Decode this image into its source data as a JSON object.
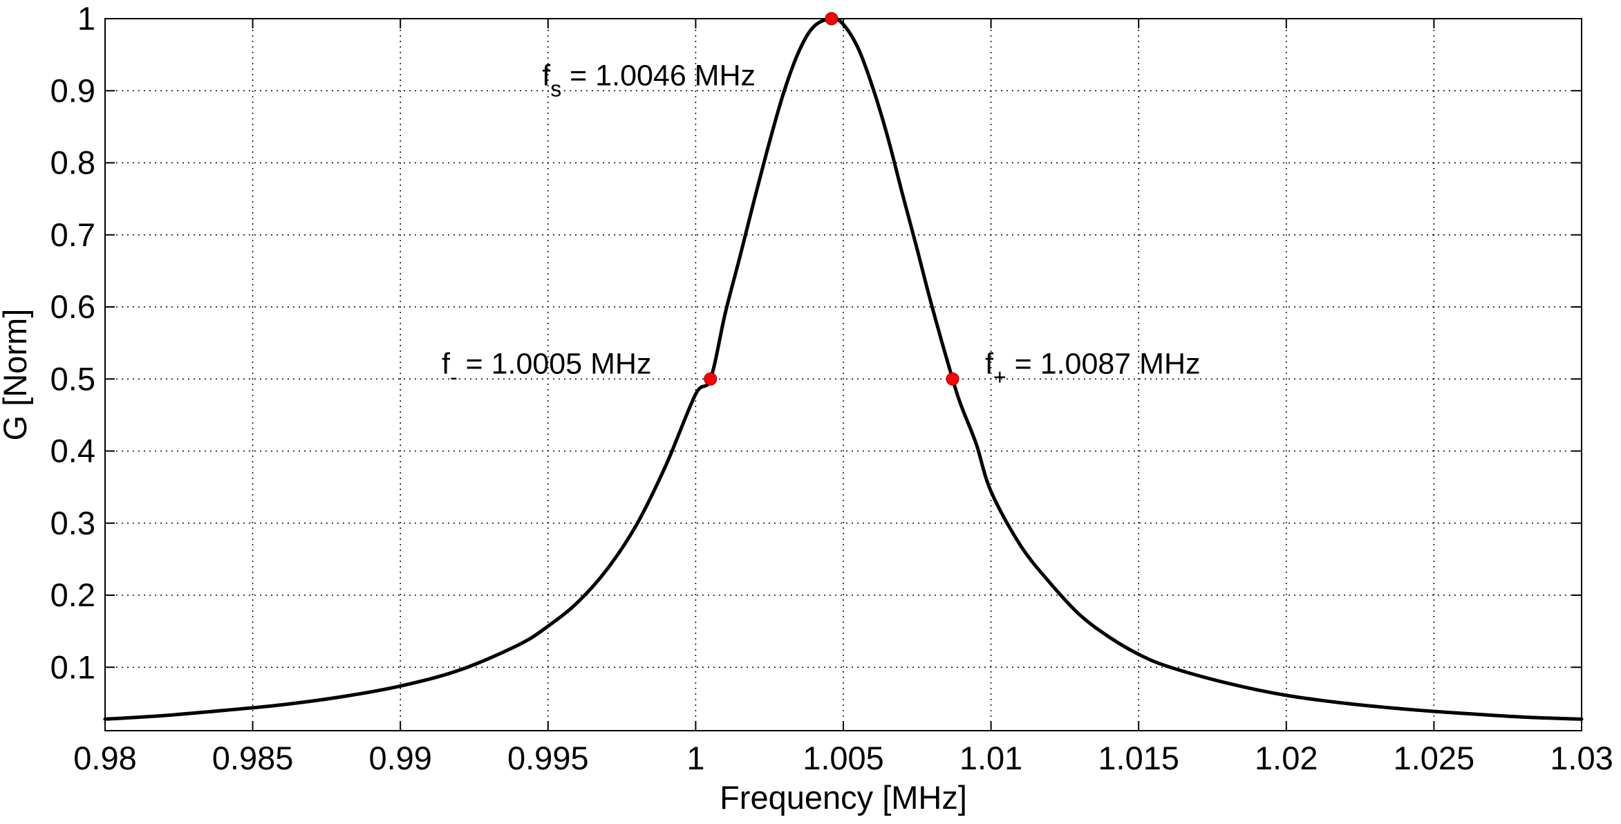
{
  "chart_data": {
    "type": "line",
    "title": "",
    "xlabel": "Frequency [MHz]",
    "ylabel": "G [Norm]",
    "xlim": [
      0.98,
      1.03
    ],
    "ylim": [
      0.012,
      1.0
    ],
    "grid": true,
    "xticks": [
      0.98,
      0.985,
      0.99,
      0.995,
      1.0,
      1.005,
      1.01,
      1.015,
      1.02,
      1.025,
      1.03
    ],
    "xtick_labels": [
      "0.98",
      "0.985",
      "0.99",
      "0.995",
      "1",
      "1.005",
      "1.01",
      "1.015",
      "1.02",
      "1.025",
      "1.03"
    ],
    "yticks": [
      0.1,
      0.2,
      0.3,
      0.4,
      0.5,
      0.6,
      0.7,
      0.8,
      0.9,
      1.0
    ],
    "ytick_labels": [
      "0.1",
      "0.2",
      "0.3",
      "0.4",
      "0.5",
      "0.6",
      "0.7",
      "0.8",
      "0.9",
      "1"
    ],
    "series": [
      {
        "name": "G",
        "color": "#000000",
        "x": [
          0.98,
          0.982,
          0.984,
          0.986,
          0.988,
          0.99,
          0.992,
          0.994,
          0.995,
          0.996,
          0.997,
          0.998,
          0.999,
          1.0,
          1.0005,
          1.001,
          1.0015,
          1.002,
          1.0025,
          1.003,
          1.0035,
          1.004,
          1.0046,
          1.005,
          1.0055,
          1.006,
          1.0065,
          1.007,
          1.0075,
          1.008,
          1.0087,
          1.009,
          1.0095,
          1.01,
          1.011,
          1.012,
          1.013,
          1.014,
          1.015,
          1.016,
          1.018,
          1.02,
          1.022,
          1.024,
          1.026,
          1.028,
          1.03
        ],
        "y": [
          0.028,
          0.033,
          0.04,
          0.048,
          0.059,
          0.074,
          0.096,
          0.131,
          0.157,
          0.19,
          0.236,
          0.298,
          0.381,
          0.479,
          0.5,
          0.591,
          0.67,
          0.751,
          0.829,
          0.9,
          0.955,
          0.989,
          1.0,
          0.992,
          0.959,
          0.904,
          0.836,
          0.757,
          0.68,
          0.601,
          0.5,
          0.462,
          0.41,
          0.344,
          0.269,
          0.217,
          0.173,
          0.142,
          0.118,
          0.101,
          0.078,
          0.061,
          0.05,
          0.042,
          0.036,
          0.031,
          0.028
        ]
      }
    ],
    "markers": [
      {
        "x": 1.0005,
        "y": 0.5,
        "color": "#ff0000"
      },
      {
        "x": 1.0046,
        "y": 1.0,
        "color": "#ff0000"
      },
      {
        "x": 1.0087,
        "y": 0.5,
        "color": "#ff0000"
      }
    ],
    "annotations": [
      {
        "base": "f",
        "sub": "s",
        "text": " = 1.0046 MHz",
        "x": 0.9948,
        "y": 0.9
      },
      {
        "base": "f",
        "sub": "-",
        "text": " = 1.0005 MHz",
        "x": 0.9914,
        "y": 0.5
      },
      {
        "base": "f",
        "sub": "+",
        "text": " = 1.0087 MHz",
        "x": 1.0098,
        "y": 0.5
      }
    ]
  }
}
